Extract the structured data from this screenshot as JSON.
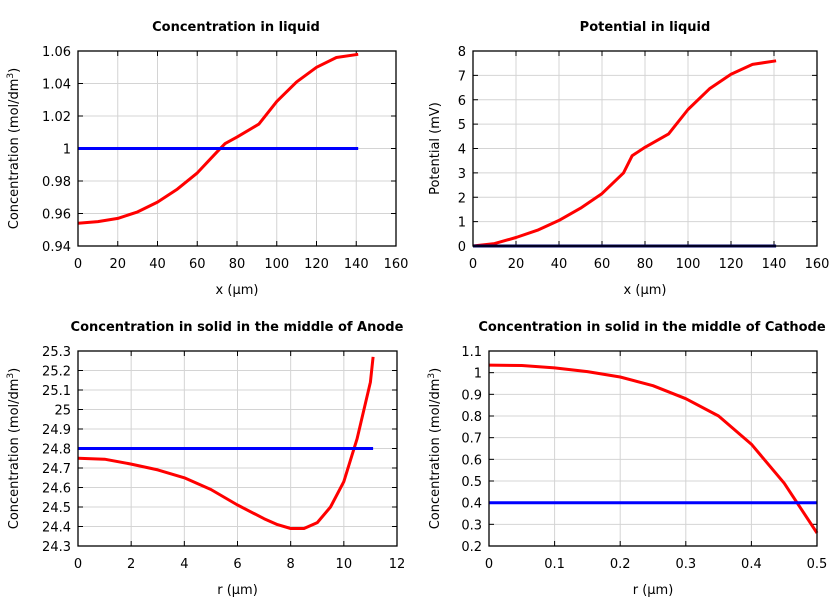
{
  "chart_data": [
    {
      "type": "line",
      "title": "Concentration in liquid",
      "xlabel": "x (µm)",
      "ylabel": "Concentration (mol/dm",
      "ylabel_sup": "3",
      "ylabel_end": ")",
      "xlim": [
        0,
        160
      ],
      "ylim": [
        0.94,
        1.06
      ],
      "xticks": [
        "0",
        "20",
        "40",
        "60",
        "80",
        "100",
        "120",
        "140",
        "160"
      ],
      "yticks": [
        "0.94",
        "0.96",
        "0.98",
        "1",
        "1.02",
        "1.04",
        "1.06"
      ],
      "grid": true,
      "series": [
        {
          "color": "#ff0000",
          "x": [
            0,
            10,
            20,
            30,
            40,
            50,
            60,
            70,
            74,
            80,
            91,
            100,
            110,
            120,
            130,
            141
          ],
          "y": [
            0.954,
            0.955,
            0.957,
            0.961,
            0.967,
            0.975,
            0.985,
            0.998,
            1.003,
            1.007,
            1.015,
            1.029,
            1.041,
            1.05,
            1.056,
            1.058
          ]
        },
        {
          "color": "#0000ff",
          "x": [
            0,
            141
          ],
          "y": [
            1,
            1
          ]
        }
      ]
    },
    {
      "type": "line",
      "title": "Potential in liquid",
      "xlabel": "x (µm)",
      "ylabel": "Potential (mV)",
      "xlim": [
        0,
        160
      ],
      "ylim": [
        0,
        8
      ],
      "xticks": [
        "0",
        "20",
        "40",
        "60",
        "80",
        "100",
        "120",
        "140",
        "160"
      ],
      "yticks": [
        "0",
        "1",
        "2",
        "3",
        "4",
        "5",
        "6",
        "7",
        "8"
      ],
      "grid": true,
      "series": [
        {
          "color": "#ff0000",
          "x": [
            0,
            10,
            20,
            30,
            40,
            50,
            60,
            70,
            74,
            80,
            91,
            100,
            110,
            120,
            130,
            141
          ],
          "y": [
            0,
            0.1,
            0.35,
            0.65,
            1.05,
            1.55,
            2.15,
            3.0,
            3.7,
            4.05,
            4.6,
            5.6,
            6.45,
            7.05,
            7.45,
            7.6
          ]
        },
        {
          "color": "#000066",
          "x": [
            0,
            141
          ],
          "y": [
            0,
            0
          ]
        }
      ]
    },
    {
      "type": "line",
      "title": "Concentration in solid in the middle of Anode",
      "xlabel": "r (µm)",
      "ylabel": "Concentration (mol/dm",
      "ylabel_sup": "3",
      "ylabel_end": ")",
      "xlim": [
        0,
        12
      ],
      "ylim": [
        24.3,
        25.3
      ],
      "xticks": [
        "0",
        "2",
        "4",
        "6",
        "8",
        "10",
        "12"
      ],
      "yticks": [
        "24.3",
        "24.4",
        "24.5",
        "24.6",
        "24.7",
        "24.8",
        "24.9",
        "25",
        "25.1",
        "25.2",
        "25.3"
      ],
      "grid": true,
      "series": [
        {
          "color": "#ff0000",
          "x": [
            0,
            1,
            2,
            3,
            4,
            5,
            6,
            7,
            7.5,
            8,
            8.5,
            9,
            9.5,
            10,
            10.5,
            11,
            11.1
          ],
          "y": [
            24.75,
            24.745,
            24.72,
            24.69,
            24.65,
            24.59,
            24.51,
            24.44,
            24.41,
            24.39,
            24.39,
            24.42,
            24.5,
            24.63,
            24.85,
            25.14,
            25.27
          ]
        },
        {
          "color": "#0000ff",
          "x": [
            0,
            11.1
          ],
          "y": [
            24.8,
            24.8
          ]
        }
      ]
    },
    {
      "type": "line",
      "title": "Concentration in solid in the middle of Cathode",
      "xlabel": "r (µm)",
      "ylabel": "Concentration (mol/dm",
      "ylabel_sup": "3",
      "ylabel_end": ")",
      "xlim": [
        0,
        0.5
      ],
      "ylim": [
        0.2,
        1.1
      ],
      "xticks": [
        "0",
        "0.1",
        "0.2",
        "0.3",
        "0.4",
        "0.5"
      ],
      "yticks": [
        "0.2",
        "0.3",
        "0.4",
        "0.5",
        "0.6",
        "0.7",
        "0.8",
        "0.9",
        "1",
        "1.1"
      ],
      "grid": true,
      "series": [
        {
          "color": "#ff0000",
          "x": [
            0,
            0.05,
            0.1,
            0.15,
            0.2,
            0.25,
            0.3,
            0.35,
            0.4,
            0.45,
            0.5
          ],
          "y": [
            1.035,
            1.033,
            1.022,
            1.005,
            0.98,
            0.94,
            0.88,
            0.8,
            0.67,
            0.49,
            0.26
          ]
        },
        {
          "color": "#0000ff",
          "x": [
            0,
            0.5
          ],
          "y": [
            0.4,
            0.4
          ]
        }
      ]
    }
  ]
}
